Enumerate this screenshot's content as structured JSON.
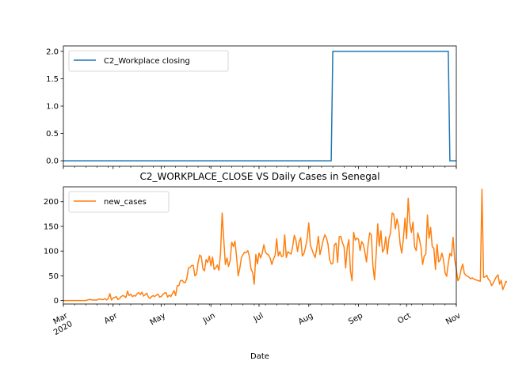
{
  "chart_data": [
    {
      "type": "line",
      "title": "",
      "xlabel": "",
      "ylabel": "",
      "ylim": [
        -0.1,
        2.1
      ],
      "y_ticks": [
        "0.0",
        "0.5",
        "1.0",
        "1.5",
        "2.0"
      ],
      "y_tick_values": [
        0.0,
        0.5,
        1.0,
        1.5,
        2.0
      ],
      "legend_position": "top-left",
      "series": [
        {
          "name": "C2_Workplace closing",
          "color": "#1f77b4",
          "points": [
            {
              "x": "2020-03-01",
              "y": 0
            },
            {
              "x": "2020-08-15",
              "y": 0
            },
            {
              "x": "2020-08-16",
              "y": 2
            },
            {
              "x": "2020-10-27",
              "y": 2
            },
            {
              "x": "2020-10-28",
              "y": 0
            },
            {
              "x": "2020-11-01",
              "y": 0
            }
          ]
        }
      ]
    },
    {
      "type": "line",
      "title": "C2_WORKPLACE_CLOSE VS Daily Cases in Senegal",
      "xlabel": "Date",
      "ylabel": "",
      "xlim": [
        "2020-03-01",
        "2020-11-01"
      ],
      "ylim": [
        -7,
        230
      ],
      "y_ticks": [
        "0",
        "50",
        "100",
        "150",
        "200"
      ],
      "y_tick_values": [
        0,
        50,
        100,
        150,
        200
      ],
      "x_tick_labels": [
        {
          "label": "Mar",
          "sub": "2020",
          "date": "2020-03-01"
        },
        {
          "label": "Apr",
          "sub": "",
          "date": "2020-04-01"
        },
        {
          "label": "May",
          "sub": "",
          "date": "2020-05-01"
        },
        {
          "label": "Jun",
          "sub": "",
          "date": "2020-06-01"
        },
        {
          "label": "Jul",
          "sub": "",
          "date": "2020-07-01"
        },
        {
          "label": "Aug",
          "sub": "",
          "date": "2020-08-01"
        },
        {
          "label": "Sep",
          "sub": "",
          "date": "2020-09-01"
        },
        {
          "label": "Oct",
          "sub": "",
          "date": "2020-10-01"
        },
        {
          "label": "Nov",
          "sub": "",
          "date": "2020-11-01"
        }
      ],
      "legend_position": "top-left",
      "series": [
        {
          "name": "new_cases",
          "color": "#ff7f0e",
          "start_date": "2020-03-01",
          "values": [
            0,
            0,
            0,
            0,
            0,
            0,
            0,
            0,
            0,
            0,
            0,
            0,
            0,
            0,
            0,
            1,
            2,
            2,
            1,
            1,
            1,
            1,
            3,
            3,
            2,
            2,
            4,
            1,
            4,
            14,
            1,
            5,
            6,
            8,
            2,
            4,
            8,
            10,
            9,
            6,
            19,
            10,
            13,
            8,
            10,
            9,
            14,
            16,
            12,
            17,
            9,
            12,
            15,
            7,
            4,
            8,
            10,
            8,
            11,
            13,
            7,
            8,
            12,
            15,
            16,
            7,
            11,
            8,
            14,
            20,
            10,
            30,
            30,
            40,
            41,
            37,
            36,
            45,
            66,
            67,
            71,
            71,
            50,
            53,
            77,
            92,
            89,
            64,
            60,
            83,
            77,
            90,
            70,
            88,
            63,
            66,
            72,
            61,
            96,
            177,
            124,
            73,
            86,
            69,
            81,
            118,
            109,
            120,
            88,
            50,
            65,
            87,
            93,
            98,
            97,
            101,
            89,
            64,
            57,
            33,
            93,
            74,
            96,
            86,
            96,
            113,
            98,
            94,
            92,
            85,
            73,
            84,
            91,
            125,
            90,
            99,
            89,
            90,
            133,
            87,
            99,
            96,
            94,
            110,
            132,
            122,
            99,
            119,
            127,
            90,
            95,
            108,
            125,
            157,
            112,
            103,
            94,
            87,
            106,
            130,
            93,
            107,
            122,
            133,
            127,
            114,
            83,
            74,
            75,
            113,
            116,
            77,
            129,
            130,
            117,
            109,
            66,
            107,
            123,
            60,
            40,
            138,
            122,
            126,
            124,
            101,
            119,
            114,
            98,
            78,
            113,
            137,
            133,
            70,
            42,
            92,
            155,
            110,
            141,
            98,
            104,
            129,
            94,
            125,
            137,
            177,
            175,
            145,
            165,
            151,
            113,
            96,
            125,
            167,
            125,
            207,
            158,
            138,
            159,
            109,
            101,
            137,
            124,
            107,
            73,
            90,
            94,
            173,
            126,
            148,
            109,
            106,
            63,
            114,
            78,
            82,
            96,
            83,
            56,
            49,
            75,
            95,
            90,
            128,
            83,
            64,
            40,
            46,
            63,
            74,
            55,
            51,
            49,
            47,
            44,
            46,
            43,
            42,
            41,
            40,
            39,
            225,
            47,
            48,
            51,
            43,
            40,
            30,
            35,
            42,
            48,
            52,
            33,
            41,
            22,
            30,
            39,
            36,
            22,
            11,
            31,
            40,
            35,
            21,
            37,
            26,
            34,
            31,
            32,
            27,
            19,
            36,
            20,
            24,
            32,
            22,
            18,
            21,
            19,
            28,
            14,
            25,
            26,
            20,
            23,
            17,
            28,
            20,
            15,
            21,
            15,
            17,
            23,
            9,
            12,
            10,
            13,
            14
          ]
        }
      ]
    }
  ]
}
